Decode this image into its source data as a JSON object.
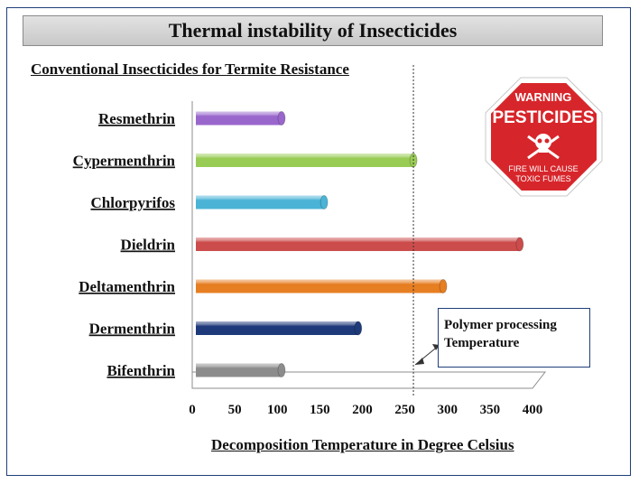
{
  "chart_data": {
    "type": "bar",
    "orientation": "horizontal",
    "title": "Thermal instability of Insecticides",
    "subtitle": "Conventional Insecticides for Termite Resistance",
    "xlabel": "Decomposition Temperature in Degree Celsius",
    "categories": [
      "Resmethrin",
      "Cypermenthrin",
      "Chlorpyrifos",
      "Dieldrin",
      "Deltamenthrin",
      "Dermenthrin",
      "Bifenthrin"
    ],
    "values": [
      105,
      260,
      155,
      385,
      295,
      195,
      105
    ],
    "bar_colors": [
      "#9966cc",
      "#99cc55",
      "#4ab3d6",
      "#cc4c4c",
      "#e67e22",
      "#1f3a7a",
      "#8c8c8c"
    ],
    "xlim": [
      0,
      400
    ],
    "xticks": [
      "0",
      "50",
      "100",
      "150",
      "200",
      "250",
      "300",
      "350",
      "400"
    ],
    "reference_line": {
      "value": 260,
      "label_line1": "Polymer processing",
      "label_line2": "Temperature"
    }
  },
  "sign": {
    "line1": "WARNING",
    "line2": "PESTICIDES",
    "line3": "FIRE WILL CAUSE",
    "line4": "TOXIC FUMES",
    "color": "#d7262b"
  }
}
